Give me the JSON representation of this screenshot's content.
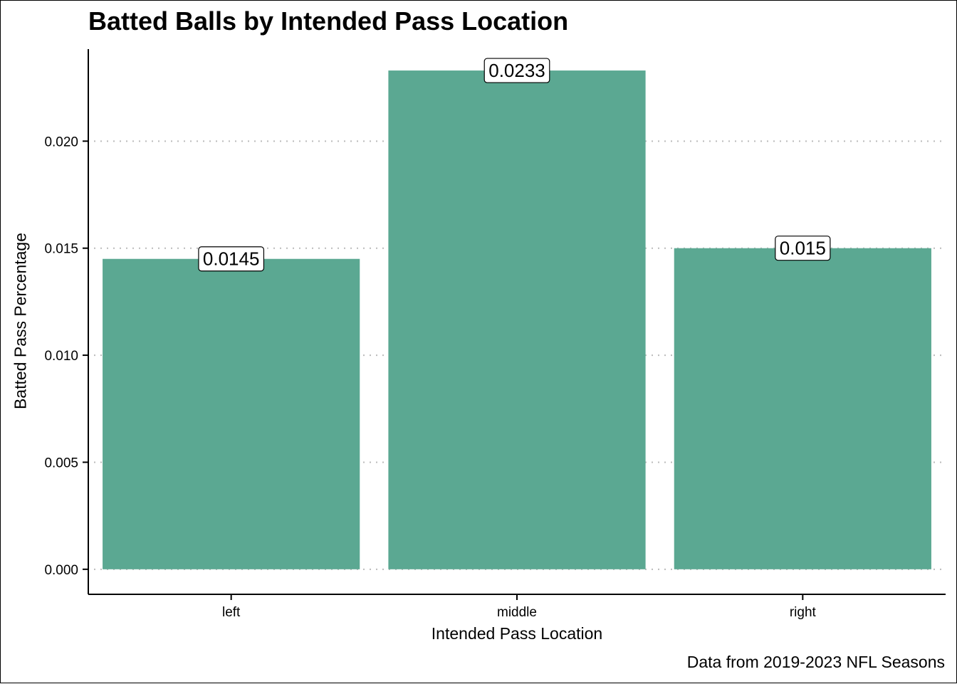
{
  "chart_data": {
    "type": "bar",
    "title": "Batted Balls by Intended Pass Location",
    "xlabel": "Intended Pass Location",
    "ylabel": "Batted Pass Percentage",
    "caption": "Data from 2019-2023 NFL Seasons",
    "categories": [
      "left",
      "middle",
      "right"
    ],
    "values": [
      0.0145,
      0.0233,
      0.015
    ],
    "data_labels": [
      "0.0145",
      "0.0233",
      "0.015"
    ],
    "y_ticks": [
      0.0,
      0.005,
      0.01,
      0.015,
      0.02
    ],
    "y_tick_labels": [
      "0.000",
      "0.005",
      "0.010",
      "0.015",
      "0.020"
    ],
    "ylim": [
      -0.00117,
      0.0243
    ],
    "grid": "horizontal dotted",
    "legend": "none",
    "bar_color": "#5ba892",
    "grid_color": "#bbbbbb"
  }
}
